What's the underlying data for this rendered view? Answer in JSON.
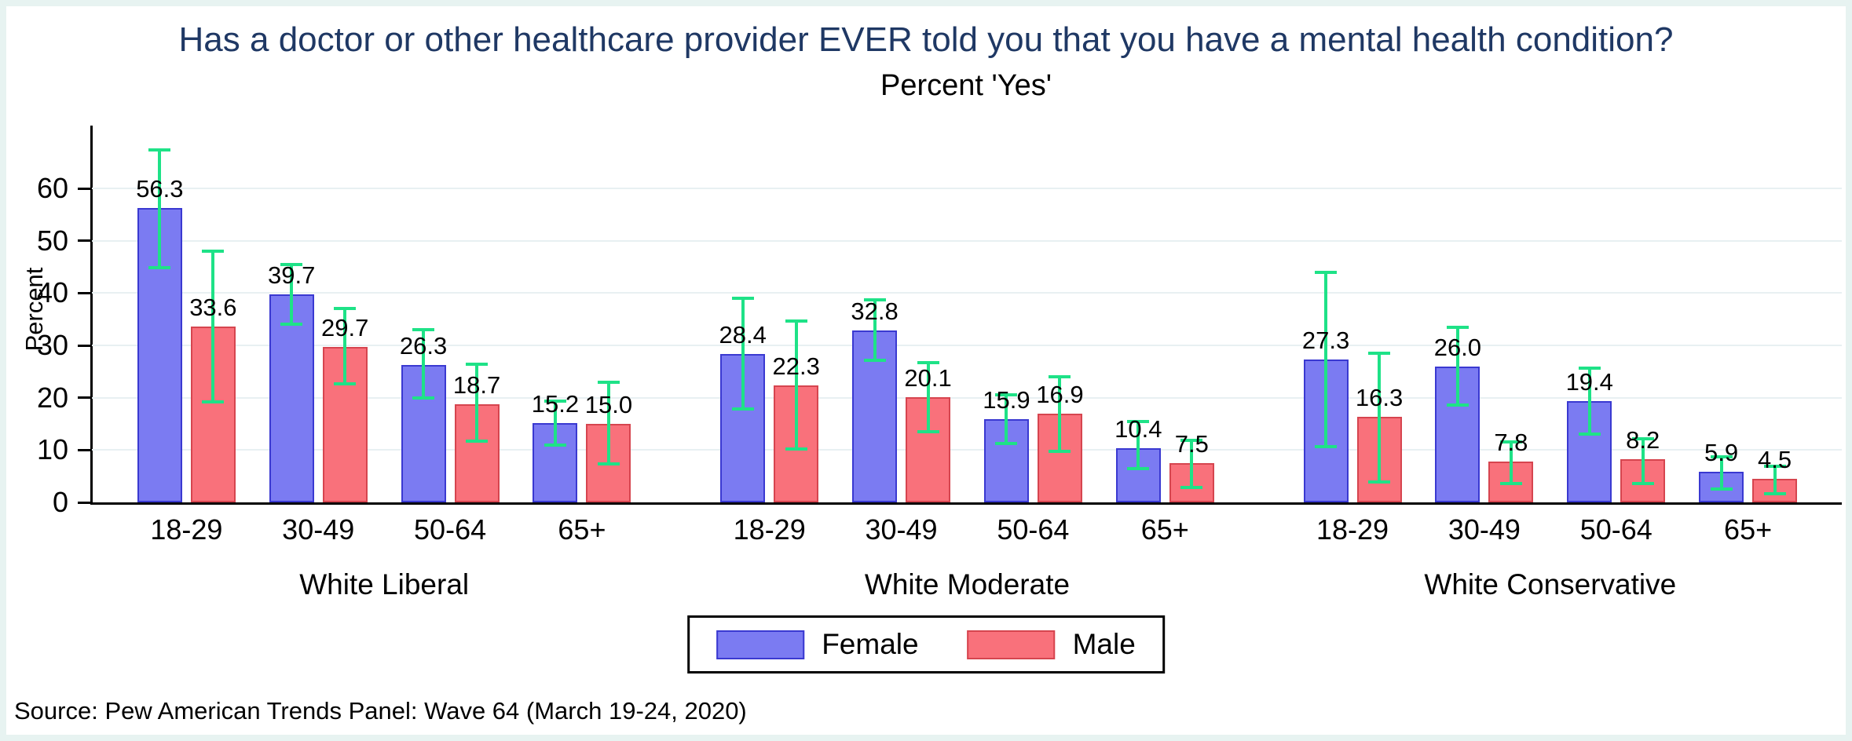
{
  "source": "Source: Pew American Trends Panel: Wave 64 (March 19-24, 2020)",
  "colors": {
    "title": "#1f3864",
    "female_fill": "#7b7bf2",
    "female_border": "#3a39d1",
    "male_fill": "#f9717b",
    "male_border": "#d6454f",
    "error_bar": "#1ee287",
    "gridline": "#e8f0f2",
    "frame": "#e7f3f1",
    "axis": "#000000"
  },
  "chart_data": {
    "type": "bar",
    "title": "Has a doctor or other healthcare provider EVER told you that you have a mental health condition?",
    "subtitle": "Percent 'Yes'",
    "ylabel": "Percent",
    "ylim": [
      0,
      72
    ],
    "yticks": [
      0,
      10,
      20,
      30,
      40,
      50,
      60
    ],
    "grid": true,
    "legend": [
      "Female",
      "Male"
    ],
    "legend_position": "bottom-center",
    "categories": [
      "18-29",
      "30-49",
      "50-64",
      "65+"
    ],
    "groups": [
      {
        "label": "White Liberal",
        "series": [
          {
            "name": "Female",
            "values": [
              56.3,
              39.7,
              26.3,
              15.2
            ],
            "ci": [
              [
                44.8,
                67.4
              ],
              [
                34.0,
                45.5
              ],
              [
                20.0,
                33.0
              ],
              [
                11.0,
                19.3
              ]
            ]
          },
          {
            "name": "Male",
            "values": [
              33.6,
              29.7,
              18.7,
              15.0
            ],
            "ci": [
              [
                19.2,
                48.0
              ],
              [
                22.7,
                37.1
              ],
              [
                11.7,
                26.4
              ],
              [
                7.4,
                22.9
              ]
            ]
          }
        ]
      },
      {
        "label": "White Moderate",
        "series": [
          {
            "name": "Female",
            "values": [
              28.4,
              32.8,
              15.9,
              10.4
            ],
            "ci": [
              [
                17.8,
                39.0
              ],
              [
                27.2,
                38.7
              ],
              [
                11.3,
                20.6
              ],
              [
                6.4,
                15.5
              ]
            ]
          },
          {
            "name": "Male",
            "values": [
              22.3,
              20.1,
              16.9,
              7.5
            ],
            "ci": [
              [
                10.2,
                34.6
              ],
              [
                13.5,
                26.7
              ],
              [
                9.7,
                24.0
              ],
              [
                2.9,
                11.9
              ]
            ]
          }
        ]
      },
      {
        "label": "White Conservative",
        "series": [
          {
            "name": "Female",
            "values": [
              27.3,
              26.0,
              19.4,
              5.9
            ],
            "ci": [
              [
                10.7,
                44.0
              ],
              [
                18.6,
                33.5
              ],
              [
                13.1,
                25.7
              ],
              [
                2.6,
                8.7
              ]
            ]
          },
          {
            "name": "Male",
            "values": [
              16.3,
              7.8,
              8.2,
              4.5
            ],
            "ci": [
              [
                3.9,
                28.5
              ],
              [
                3.6,
                11.6
              ],
              [
                3.6,
                12.2
              ],
              [
                1.6,
                6.9
              ]
            ]
          }
        ]
      }
    ]
  }
}
